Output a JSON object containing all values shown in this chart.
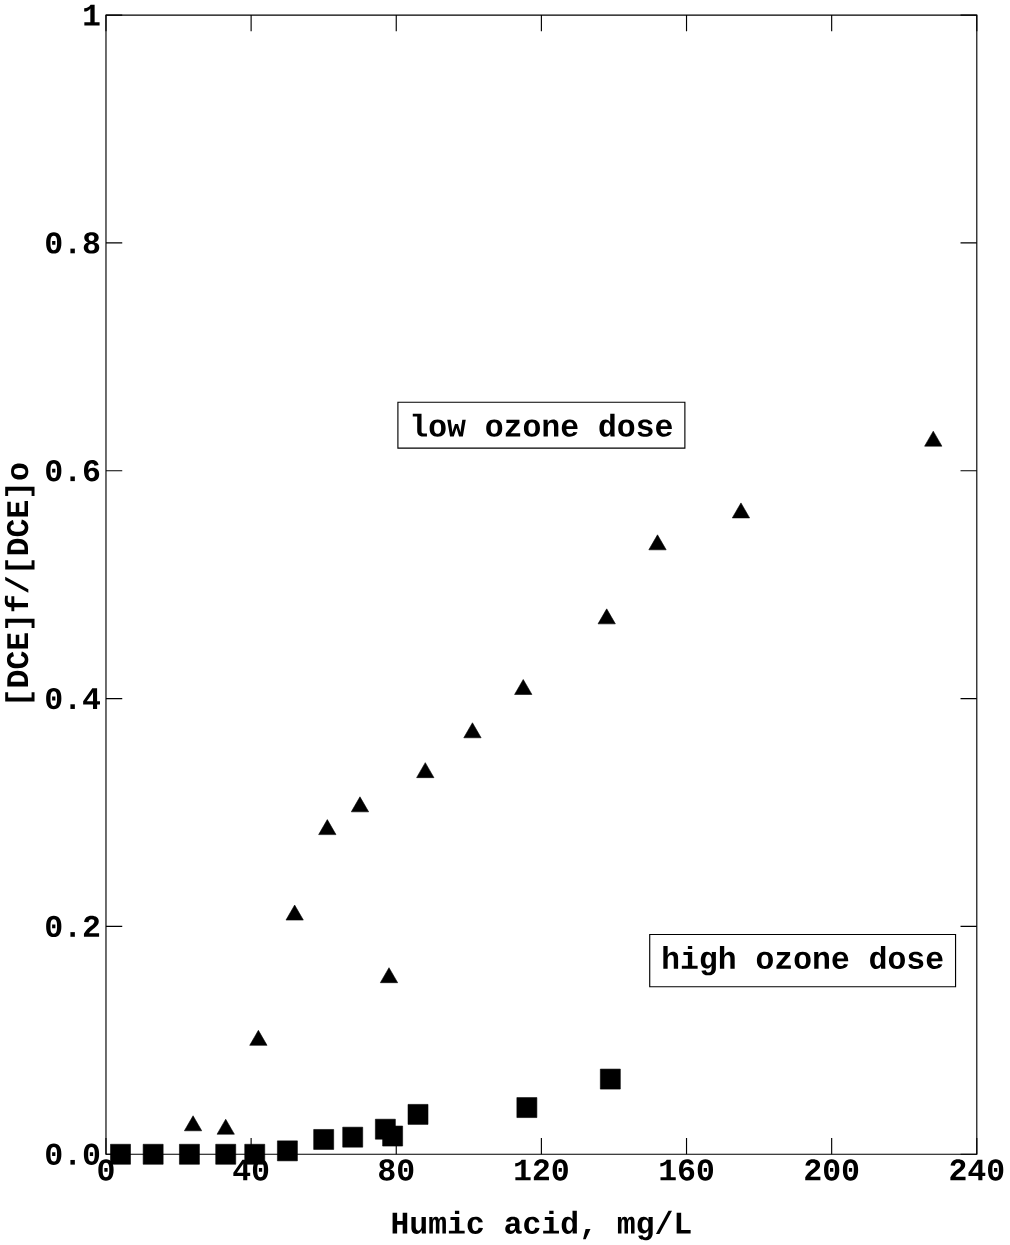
{
  "chart_data": {
    "type": "scatter",
    "xlabel": "Humic acid, mg/L",
    "ylabel": "[DCE]f/[DCE]o",
    "xlim": [
      0,
      240
    ],
    "xticks": [
      0,
      40,
      80,
      120,
      160,
      200,
      240
    ],
    "ylim": [
      0,
      1
    ],
    "yticks": [
      {
        "value": 0,
        "label": "0.0"
      },
      0.2,
      0.4,
      0.6,
      0.8,
      1
    ],
    "annotations": [
      "low ozone dose",
      "high ozone dose"
    ],
    "series": [
      {
        "color": "#000000",
        "marker": "triangle",
        "x": [
          24,
          33,
          42,
          52,
          61,
          70,
          78,
          88,
          101,
          115,
          138,
          152,
          175,
          228
        ],
        "values": [
          0.025,
          0.022,
          0.1,
          0.21,
          0.285,
          0.305,
          0.155,
          0.335,
          0.37,
          0.408,
          0.47,
          0.535,
          0.563,
          0.626
        ]
      },
      {
        "color": "#000000",
        "marker": "square",
        "x": [
          4,
          13,
          23,
          33,
          41,
          50,
          60,
          68,
          77,
          79,
          86,
          116,
          139
        ],
        "values": [
          0,
          0,
          0,
          0,
          0,
          0.003,
          0.013,
          0.015,
          0.022,
          0.016,
          0.035,
          0.041,
          0.066
        ]
      }
    ]
  }
}
